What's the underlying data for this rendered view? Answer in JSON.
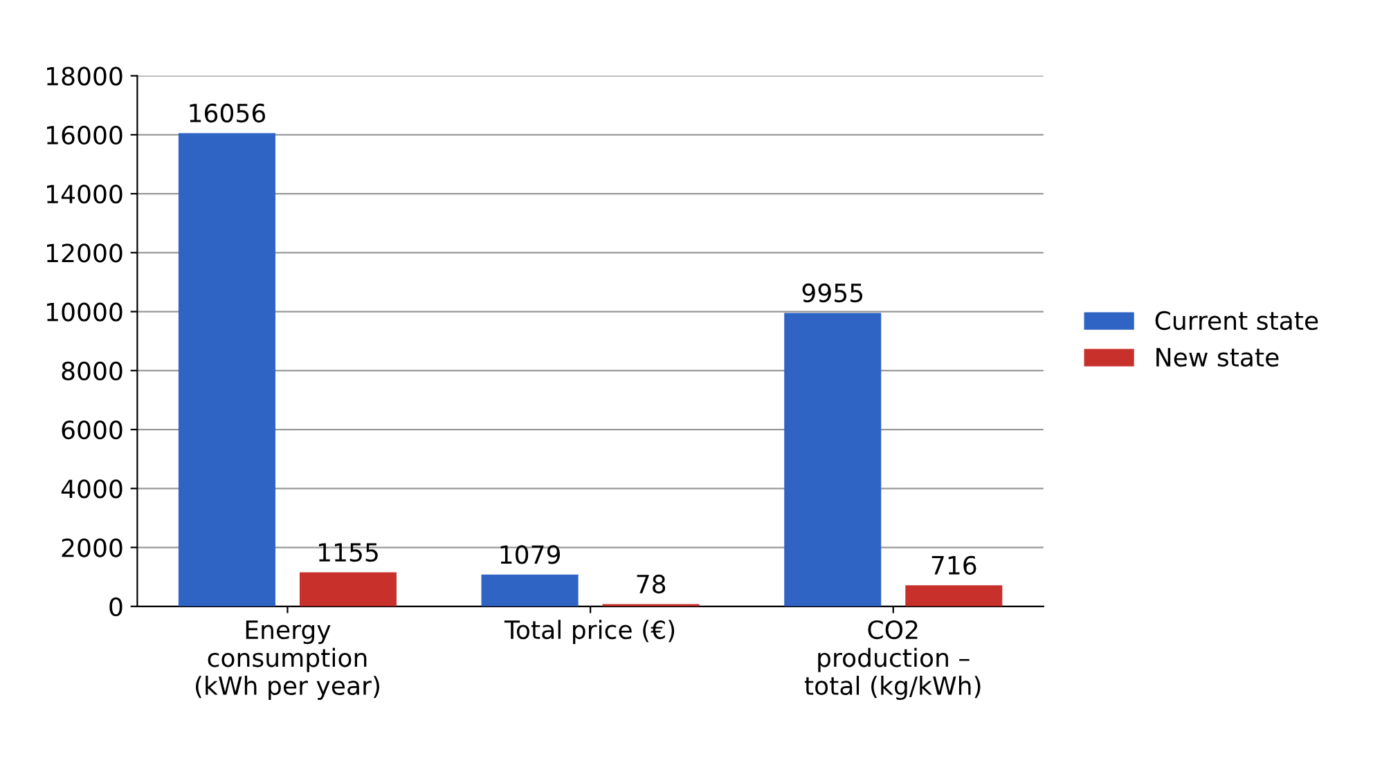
{
  "chart_data": {
    "type": "bar",
    "categories": [
      "Energy\nconsumption\n(kWh per year)",
      "Total price (€)",
      "CO2\nproduction –\ntotal (kg/kWh)"
    ],
    "series": [
      {
        "name": "Current state",
        "color": "#2f63c4",
        "values": [
          16056,
          1079,
          9955
        ]
      },
      {
        "name": "New state",
        "color": "#c8302c",
        "values": [
          1155,
          78,
          716
        ]
      }
    ],
    "ylim": [
      0,
      18000
    ],
    "yticks": [
      0,
      2000,
      4000,
      6000,
      8000,
      10000,
      12000,
      14000,
      16000,
      18000
    ],
    "grid": "y",
    "legend": "right",
    "data_labels": true
  }
}
